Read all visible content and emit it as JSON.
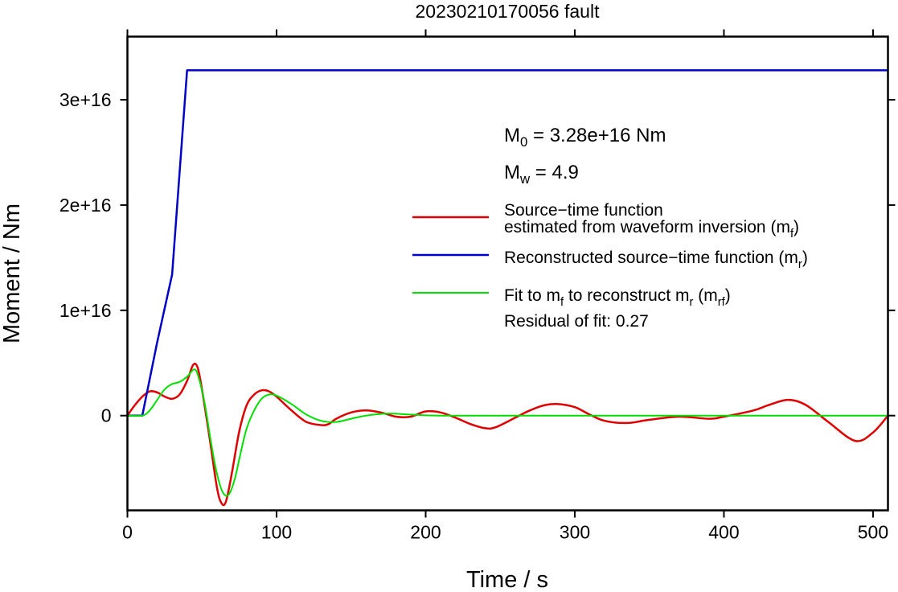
{
  "chart_data": {
    "type": "line",
    "title": "20230210170056 fault",
    "xlabel": "Time / s",
    "ylabel": "Moment / Nm",
    "xlim": [
      0,
      510
    ],
    "ylim": [
      -9000000000000000.0,
      3.6e+16
    ],
    "x_ticks": [
      0,
      100,
      200,
      300,
      400,
      500
    ],
    "x_tick_labels": [
      "0",
      "100",
      "200",
      "300",
      "400",
      "500"
    ],
    "y_ticks": [
      0,
      1e+16,
      2e+16,
      3e+16
    ],
    "y_tick_labels": [
      "0",
      "1e+16",
      "2e+16",
      "3e+16"
    ],
    "grid": false,
    "legend_position": "right",
    "annotations": {
      "m0": {
        "base": "M",
        "sub": "0",
        "rest": " = 3.28e+16 Nm"
      },
      "mw": {
        "base": "M",
        "sub": "w",
        "rest": " = 4.9"
      },
      "residual": "Residual of fit: 0.27"
    },
    "series": [
      {
        "id": "red",
        "color": "#e00000",
        "legend": [
          [
            {
              "t": "Source−time function"
            }
          ],
          [
            {
              "t": "estimated from waveform inversion (m"
            },
            {
              "t": "f",
              "sub": true
            },
            {
              "t": ")"
            }
          ]
        ],
        "x": [
          0,
          5,
          10,
          15,
          20,
          25,
          30,
          35,
          40,
          44,
          47,
          50,
          55,
          60,
          63,
          66,
          70,
          75,
          80,
          85,
          90,
          95,
          100,
          110,
          120,
          130,
          135,
          140,
          150,
          160,
          170,
          180,
          190,
          200,
          210,
          220,
          230,
          240,
          247,
          260,
          270,
          280,
          288,
          300,
          310,
          320,
          335,
          350,
          370,
          390,
          400,
          420,
          430,
          443,
          455,
          470,
          488,
          500,
          510
        ],
        "y": [
          0.0,
          1000000000000000.0,
          1800000000000000.0,
          2300000000000000.0,
          2200000000000000.0,
          1800000000000000.0,
          1600000000000000.0,
          2000000000000000.0,
          3300000000000000.0,
          4800000000000000.0,
          4600000000000000.0,
          2500000000000000.0,
          -2000000000000000.0,
          -6800000000000000.0,
          -8300000000000000.0,
          -8200000000000000.0,
          -5500000000000000.0,
          -1500000000000000.0,
          1000000000000000.0,
          2000000000000000.0,
          2400000000000000.0,
          2300000000000000.0,
          1800000000000000.0,
          500000000000000.0,
          -600000000000000.0,
          -900000000000000.0,
          -800000000000000.0,
          -300000000000000.0,
          300000000000000.0,
          500000000000000.0,
          300000000000000.0,
          -100000000000000.0,
          -100000000000000.0,
          400000000000000.0,
          300000000000000.0,
          -200000000000000.0,
          -800000000000000.0,
          -1200000000000000.0,
          -1100000000000000.0,
          -200000000000000.0,
          500000000000000.0,
          1000000000000000.0,
          1100000000000000.0,
          800000000000000.0,
          100000000000000.0,
          -500000000000000.0,
          -700000000000000.0,
          -400000000000000.0,
          -100000000000000.0,
          -300000000000000.0,
          -100000000000000.0,
          500000000000000.0,
          1000000000000000.0,
          1500000000000000.0,
          1000000000000000.0,
          -600000000000000.0,
          -2400000000000000.0,
          -1600000000000000.0,
          0.0
        ]
      },
      {
        "id": "blue",
        "color": "#0000c8",
        "legend": [
          [
            {
              "t": "Reconstructed source−time function (m"
            },
            {
              "t": "r",
              "sub": true
            },
            {
              "t": ")"
            }
          ]
        ],
        "x": [
          0,
          10,
          20,
          30,
          40,
          510
        ],
        "y": [
          0,
          0,
          7000000000000000.0,
          1.34e+16,
          3.28e+16,
          3.28e+16
        ]
      },
      {
        "id": "green",
        "color": "#00e000",
        "legend": [
          [
            {
              "t": "Fit to m"
            },
            {
              "t": "f",
              "sub": true
            },
            {
              "t": " to reconstruct m"
            },
            {
              "t": "r",
              "sub": true
            },
            {
              "t": " (m"
            },
            {
              "t": "rf",
              "sub": true
            },
            {
              "t": ")"
            }
          ]
        ],
        "x": [
          0,
          10,
          15,
          20,
          25,
          30,
          35,
          40,
          45,
          48,
          52,
          56,
          60,
          64,
          68,
          72,
          76,
          80,
          85,
          90,
          95,
          100,
          110,
          120,
          130,
          140,
          150,
          160,
          175,
          190,
          210,
          250,
          350,
          450,
          510
        ],
        "y": [
          0,
          0,
          500000000000000.0,
          1500000000000000.0,
          2500000000000000.0,
          3000000000000000.0,
          3200000000000000.0,
          3700000000000000.0,
          4400000000000000.0,
          3500000000000000.0,
          1000000000000000.0,
          -2500000000000000.0,
          -5500000000000000.0,
          -7300000000000000.0,
          -7500000000000000.0,
          -6000000000000000.0,
          -3500000000000000.0,
          -1200000000000000.0,
          500000000000000.0,
          1600000000000000.0,
          2000000000000000.0,
          1900000000000000.0,
          1100000000000000.0,
          100000000000000.0,
          -500000000000000.0,
          -600000000000000.0,
          -300000000000000.0,
          0.0,
          200000000000000.0,
          100000000000000.0,
          0,
          0,
          0,
          0,
          0
        ]
      }
    ]
  }
}
